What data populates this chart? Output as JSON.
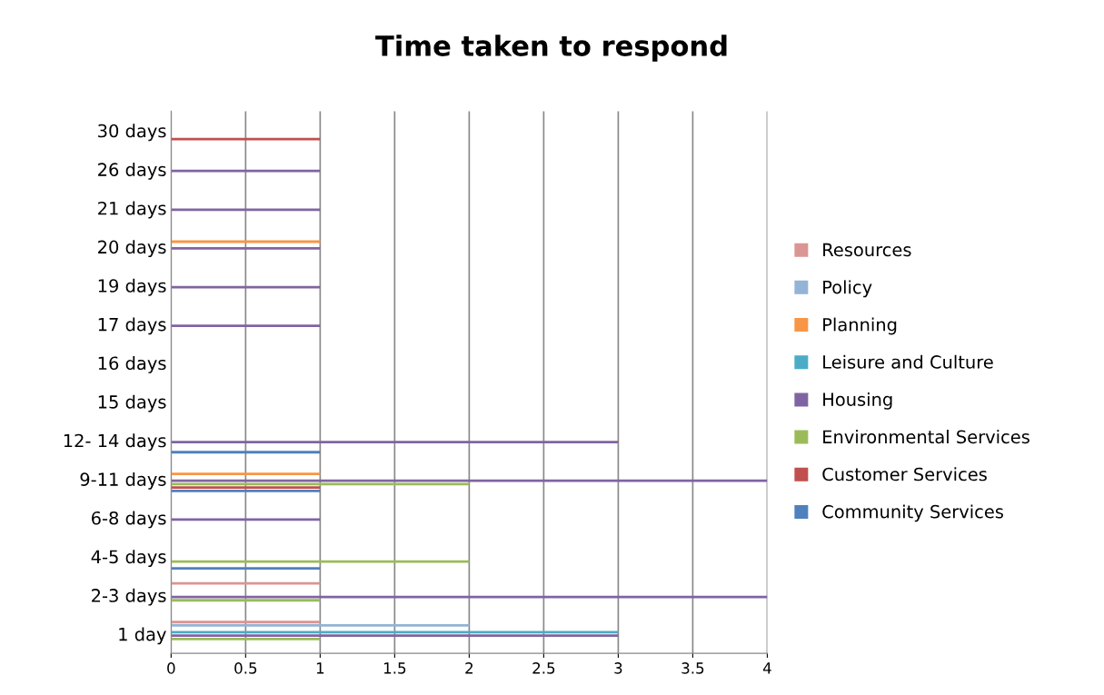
{
  "chart_data": {
    "type": "bar",
    "orientation": "horizontal",
    "title": "Time taken to respond",
    "categories": [
      "30 days",
      "26 days",
      "21 days",
      "20 days",
      "19 days",
      "17 days",
      "16 days",
      "15 days",
      "12- 14 days",
      "9-11 days",
      "6-8 days",
      "4-5 days",
      "2-3 days",
      "1 day"
    ],
    "series": [
      {
        "name": "Community Services",
        "color": "#4f81bd",
        "values": [
          0,
          0,
          0,
          0,
          0,
          0,
          0,
          0,
          1,
          1,
          0,
          1,
          0,
          0
        ]
      },
      {
        "name": "Customer Services",
        "color": "#c0504d",
        "values": [
          1,
          0,
          0,
          0,
          0,
          0,
          0,
          0,
          0,
          1,
          0,
          0,
          0,
          0
        ]
      },
      {
        "name": "Environmental Services",
        "color": "#9bbb59",
        "values": [
          0,
          0,
          0,
          0,
          0,
          0,
          0,
          0,
          0,
          2,
          0,
          2,
          1,
          1
        ]
      },
      {
        "name": "Housing",
        "color": "#8064a2",
        "values": [
          0,
          1,
          1,
          1,
          1,
          1,
          0,
          0,
          3,
          4,
          1,
          0,
          4,
          3
        ]
      },
      {
        "name": "Leisure and Culture",
        "color": "#4bacc6",
        "values": [
          0,
          0,
          0,
          0,
          0,
          0,
          0,
          0,
          0,
          0,
          0,
          0,
          0,
          3
        ]
      },
      {
        "name": "Planning",
        "color": "#f79646",
        "values": [
          0,
          0,
          0,
          1,
          0,
          0,
          0,
          0,
          0,
          1,
          0,
          0,
          0,
          0
        ]
      },
      {
        "name": "Policy",
        "color": "#95b3d7",
        "values": [
          0,
          0,
          0,
          0,
          0,
          0,
          0,
          0,
          0,
          0,
          0,
          0,
          0,
          2
        ]
      },
      {
        "name": "Resources",
        "color": "#da9694",
        "values": [
          0,
          0,
          0,
          0,
          0,
          0,
          0,
          0,
          0,
          0,
          0,
          0,
          1,
          1
        ]
      }
    ],
    "xlim": [
      0,
      4
    ],
    "xticks": [
      0,
      0.5,
      1,
      1.5,
      2,
      2.5,
      3,
      3.5,
      4
    ],
    "grid": "x",
    "legend": "right"
  }
}
